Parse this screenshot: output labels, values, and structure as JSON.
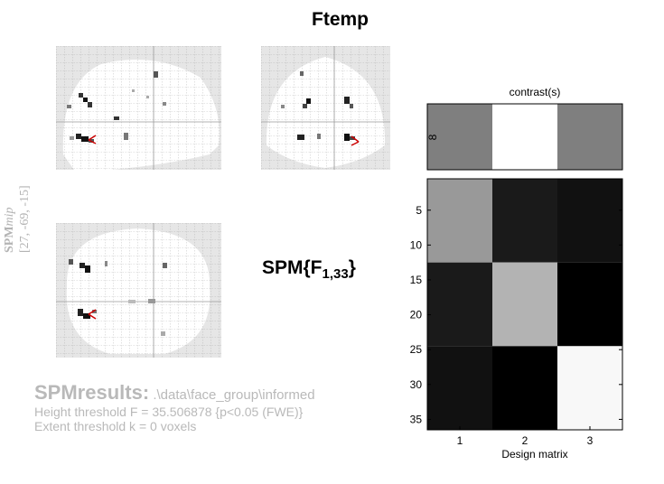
{
  "figure": {
    "title": "Ftemp",
    "mip_label_main": "SPM",
    "mip_label_italic": "mip",
    "mip_coords": "[27, -69, -15]",
    "stat_prefix": "SPM{F",
    "stat_df": "1,33",
    "stat_suffix": "}"
  },
  "results": {
    "heading": "SPMresults:",
    "path": " .\\data\\face_group\\informed",
    "height_threshold": "Height threshold F = 35.506878  {p<0.05 (FWE)}",
    "extent_threshold": "Extent threshold k = 0 voxels"
  },
  "contrast": {
    "title": "contrast(s)",
    "label": "8",
    "weights": [
      0.5,
      1.0,
      0.5
    ],
    "colors": [
      "#7f7f7f",
      "#ffffff",
      "#7f7f7f"
    ]
  },
  "design_matrix": {
    "xlabel": "Design matrix",
    "xticks": [
      "1",
      "2",
      "3"
    ],
    "yticks": [
      "5",
      "10",
      "15",
      "20",
      "25",
      "30",
      "35"
    ],
    "rows": 36,
    "columns": 3,
    "blocks": [
      {
        "rows": [
          1,
          12
        ],
        "colors": [
          "#999999",
          "#1a1a1a",
          "#111111"
        ]
      },
      {
        "rows": [
          13,
          24
        ],
        "colors": [
          "#1a1a1a",
          "#b3b3b3",
          "#000000"
        ]
      },
      {
        "rows": [
          25,
          36
        ],
        "colors": [
          "#111111",
          "#000000",
          "#f8f8f8"
        ]
      }
    ]
  }
}
